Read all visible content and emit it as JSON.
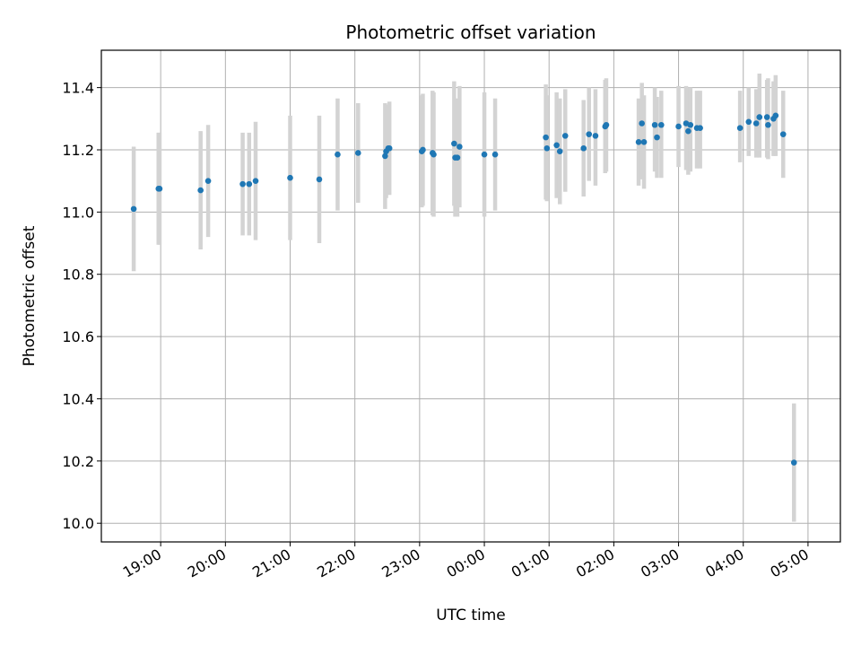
{
  "chart_data": {
    "type": "scatter",
    "title": "Photometric offset variation",
    "xlabel": "UTC time",
    "ylabel": "Photometric offset",
    "grid": true,
    "legend": "none",
    "x_ticks": [
      "19:00",
      "20:00",
      "21:00",
      "22:00",
      "23:00",
      "00:00",
      "01:00",
      "02:00",
      "03:00",
      "04:00",
      "05:00"
    ],
    "y_ticks": [
      "10.0",
      "10.2",
      "10.4",
      "10.6",
      "10.8",
      "11.0",
      "11.2",
      "11.4"
    ],
    "xlim": [
      "18:05",
      "05:30"
    ],
    "ylim": [
      9.94,
      11.52
    ],
    "colors": {
      "point": "#1f77b4",
      "errorbar": "#d3d3d3",
      "grid": "#b0b0b0"
    },
    "series": [
      {
        "x": [
          "18:35",
          "18:58",
          "18:59",
          "19:37",
          "19:44",
          "20:16",
          "20:22",
          "20:28",
          "21:00",
          "21:27",
          "21:44",
          "22:03",
          "22:28",
          "22:29",
          "22:31",
          "22:32",
          "23:02",
          "23:03",
          "23:12",
          "23:13",
          "23:32",
          "23:33",
          "23:35",
          "23:37",
          "00:00",
          "00:10",
          "00:57",
          "00:58",
          "01:07",
          "01:10",
          "01:15",
          "01:32",
          "01:37",
          "01:43",
          "01:52",
          "01:53",
          "02:23",
          "02:26",
          "02:28",
          "02:38",
          "02:40",
          "02:44",
          "03:00",
          "03:07",
          "03:09",
          "03:11",
          "03:17",
          "03:20",
          "03:57",
          "04:05",
          "04:12",
          "04:15",
          "04:22",
          "04:23",
          "04:28",
          "04:30",
          "04:37",
          "04:47"
        ],
        "y": [
          11.01,
          11.075,
          11.075,
          11.07,
          11.1,
          11.09,
          11.09,
          11.1,
          11.11,
          11.105,
          11.185,
          11.19,
          11.18,
          11.195,
          11.205,
          11.205,
          11.195,
          11.2,
          11.19,
          11.185,
          11.22,
          11.175,
          11.175,
          11.21,
          11.185,
          11.185,
          11.24,
          11.205,
          11.215,
          11.195,
          11.245,
          11.205,
          11.25,
          11.245,
          11.275,
          11.28,
          11.225,
          11.285,
          11.225,
          11.28,
          11.24,
          11.28,
          11.275,
          11.285,
          11.26,
          11.28,
          11.27,
          11.27,
          11.27,
          11.29,
          11.285,
          11.305,
          11.305,
          11.28,
          11.3,
          11.31,
          11.25,
          10.195
        ],
        "err_lo": [
          0.2,
          0.18,
          0.18,
          0.19,
          0.18,
          0.165,
          0.165,
          0.19,
          0.2,
          0.205,
          0.18,
          0.16,
          0.17,
          0.15,
          0.14,
          0.15,
          0.18,
          0.18,
          0.2,
          0.2,
          0.2,
          0.19,
          0.19,
          0.195,
          0.2,
          0.18,
          0.2,
          0.17,
          0.17,
          0.17,
          0.18,
          0.155,
          0.15,
          0.16,
          0.15,
          0.15,
          0.14,
          0.18,
          0.15,
          0.15,
          0.13,
          0.17,
          0.13,
          0.15,
          0.14,
          0.15,
          0.13,
          0.13,
          0.11,
          0.11,
          0.11,
          0.13,
          0.13,
          0.11,
          0.12,
          0.13,
          0.14,
          0.19
        ],
        "err_hi": [
          0.2,
          0.18,
          0.18,
          0.19,
          0.18,
          0.165,
          0.165,
          0.19,
          0.2,
          0.205,
          0.18,
          0.16,
          0.17,
          0.15,
          0.14,
          0.15,
          0.18,
          0.18,
          0.2,
          0.2,
          0.2,
          0.19,
          0.19,
          0.195,
          0.2,
          0.18,
          0.17,
          0.17,
          0.17,
          0.17,
          0.15,
          0.155,
          0.15,
          0.15,
          0.15,
          0.15,
          0.14,
          0.13,
          0.15,
          0.12,
          0.13,
          0.11,
          0.13,
          0.12,
          0.14,
          0.12,
          0.12,
          0.12,
          0.12,
          0.11,
          0.11,
          0.14,
          0.12,
          0.15,
          0.12,
          0.13,
          0.14,
          0.19
        ]
      }
    ]
  }
}
